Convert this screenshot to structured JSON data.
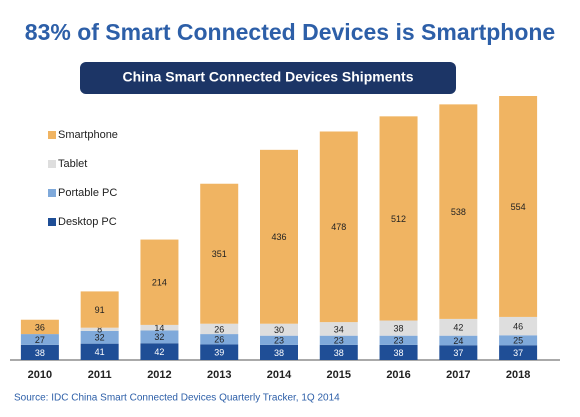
{
  "chart_data": {
    "type": "stacked_bar",
    "title": "83% of Smart Connected Devices is Smartphone",
    "subtitle": "China Smart Connected Devices Shipments",
    "source": "Source: IDC China Smart Connected Devices Quarterly Tracker, 1Q 2014",
    "categories": [
      "2010",
      "2011",
      "2012",
      "2013",
      "2014",
      "2015",
      "2016",
      "2017",
      "2018"
    ],
    "series": [
      {
        "name": "Desktop PC",
        "color": "#1f4e96",
        "values": [
          38,
          41,
          42,
          39,
          38,
          38,
          38,
          37,
          37
        ]
      },
      {
        "name": "Portable PC",
        "color": "#7fa9da",
        "values": [
          27,
          32,
          32,
          26,
          23,
          23,
          23,
          24,
          25
        ]
      },
      {
        "name": "Tablet",
        "color": "#dedede",
        "values": [
          0,
          8,
          14,
          26,
          30,
          34,
          38,
          42,
          46
        ]
      },
      {
        "name": "Smartphone",
        "color": "#f0b462",
        "values": [
          36,
          91,
          214,
          351,
          436,
          478,
          512,
          538,
          554
        ]
      }
    ]
  }
}
